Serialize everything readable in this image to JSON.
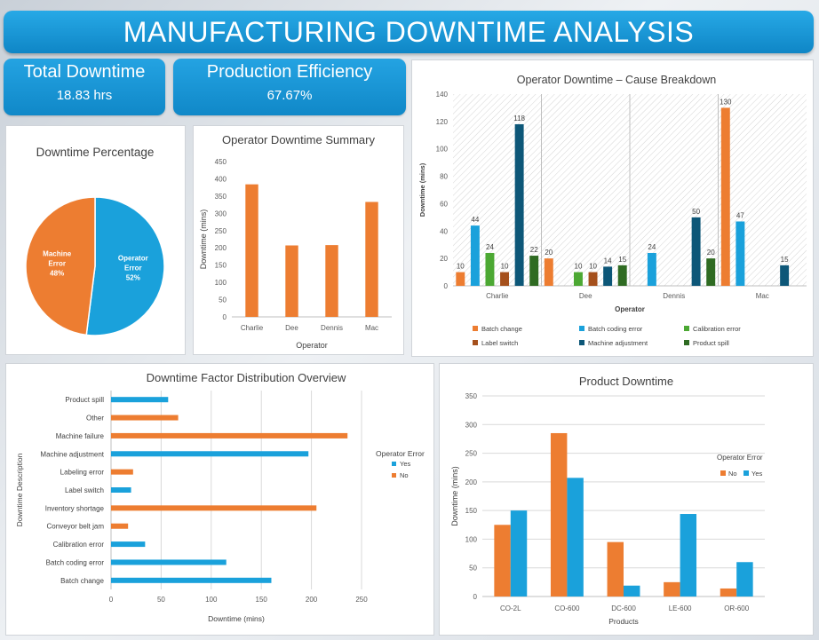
{
  "header": {
    "title": "MANUFACTURING DOWNTIME ANALYSIS"
  },
  "kpis": {
    "total": {
      "label": "Total Downtime",
      "value": "18.83 hrs"
    },
    "efficiency": {
      "label": "Production Efficiency",
      "value": "67.67%"
    }
  },
  "colors": {
    "orange": "#ED7D31",
    "blue": "#1AA1DB",
    "green": "#4CA833",
    "brown": "#A5501C",
    "navy": "#0D5778",
    "darkgreen": "#2F6B22"
  },
  "chart_data": [
    {
      "id": "pie",
      "type": "pie",
      "title": "Downtime Percentage",
      "slices": [
        {
          "name": "Operator Error",
          "label_lines": [
            "Operator",
            "Error",
            "52%"
          ],
          "value": 52,
          "color": "#1AA1DB"
        },
        {
          "name": "Machine Error",
          "label_lines": [
            "Machine",
            "Error",
            "48%"
          ],
          "value": 48,
          "color": "#ED7D31"
        }
      ]
    },
    {
      "id": "summary",
      "type": "bar",
      "title": "Operator Downtime Summary",
      "xlabel": "Operator",
      "ylabel": "Downtime (mins)",
      "ylim": [
        0,
        450
      ],
      "yticks": [
        "0",
        "50",
        "100",
        "150",
        "200",
        "250",
        "300",
        "350",
        "400",
        "450"
      ],
      "categories": [
        "Charlie",
        "Dee",
        "Dennis",
        "Mac"
      ],
      "values": [
        384,
        207,
        208,
        333
      ],
      "color": "#ED7D31"
    },
    {
      "id": "breakdown",
      "type": "bar",
      "title": "Operator Downtime – Cause Breakdown",
      "xlabel": "Operator",
      "ylabel": "Downtime (mins)",
      "ylim": [
        0,
        140
      ],
      "yticks": [
        "0",
        "20",
        "40",
        "60",
        "80",
        "100",
        "120",
        "140"
      ],
      "categories": [
        "Charlie",
        "Dee",
        "Dennis",
        "Mac"
      ],
      "series": [
        {
          "name": "Batch change",
          "color": "#ED7D31",
          "values": [
            10,
            20,
            null,
            130
          ]
        },
        {
          "name": "Batch coding error",
          "color": "#1AA1DB",
          "values": [
            44,
            null,
            24,
            47
          ]
        },
        {
          "name": "Calibration error",
          "color": "#4CA833",
          "values": [
            24,
            10,
            null,
            null
          ]
        },
        {
          "name": "Label switch",
          "color": "#A5501C",
          "values": [
            10,
            10,
            null,
            null
          ]
        },
        {
          "name": "Machine adjustment",
          "color": "#0D5778",
          "values": [
            118,
            14,
            50,
            15
          ]
        },
        {
          "name": "Product spill",
          "color": "#2F6B22",
          "values": [
            22,
            15,
            20,
            null
          ]
        }
      ],
      "legend": "bottom"
    },
    {
      "id": "factors",
      "type": "bar",
      "orientation": "horizontal",
      "title": "Downtime Factor Distribution Overview",
      "xlabel": "Downtime (mins)",
      "ylabel": "Downtime Description",
      "xlim": [
        0,
        250
      ],
      "xticks": [
        "0",
        "50",
        "100",
        "150",
        "200",
        "250"
      ],
      "legend_title": "Operator Error",
      "legend_items": [
        {
          "name": "Yes",
          "color": "#1AA1DB"
        },
        {
          "name": "No",
          "color": "#ED7D31"
        }
      ],
      "categories": [
        "Product spill",
        "Other",
        "Machine failure",
        "Machine adjustment",
        "Labeling error",
        "Label switch",
        "Inventory shortage",
        "Conveyor belt jam",
        "Calibration error",
        "Batch coding error",
        "Batch change"
      ],
      "values": [
        57,
        67,
        236,
        197,
        22,
        20,
        205,
        17,
        34,
        115,
        160
      ],
      "operator_error": [
        "Yes",
        "No",
        "No",
        "Yes",
        "No",
        "Yes",
        "No",
        "No",
        "Yes",
        "Yes",
        "Yes"
      ]
    },
    {
      "id": "product",
      "type": "bar",
      "title": "Product Downtime",
      "xlabel": "Products",
      "ylabel": "Downtime (mins)",
      "ylim": [
        0,
        350
      ],
      "yticks": [
        "0",
        "50",
        "100",
        "150",
        "200",
        "250",
        "300",
        "350"
      ],
      "categories": [
        "CO-2L",
        "CO-600",
        "DC-600",
        "LE-600",
        "OR-600"
      ],
      "legend_title": "Operator Error",
      "series": [
        {
          "name": "No",
          "color": "#ED7D31",
          "values": [
            125,
            285,
            95,
            25,
            14
          ]
        },
        {
          "name": "Yes",
          "color": "#1AA1DB",
          "values": [
            150,
            207,
            19,
            144,
            60
          ]
        }
      ]
    }
  ]
}
